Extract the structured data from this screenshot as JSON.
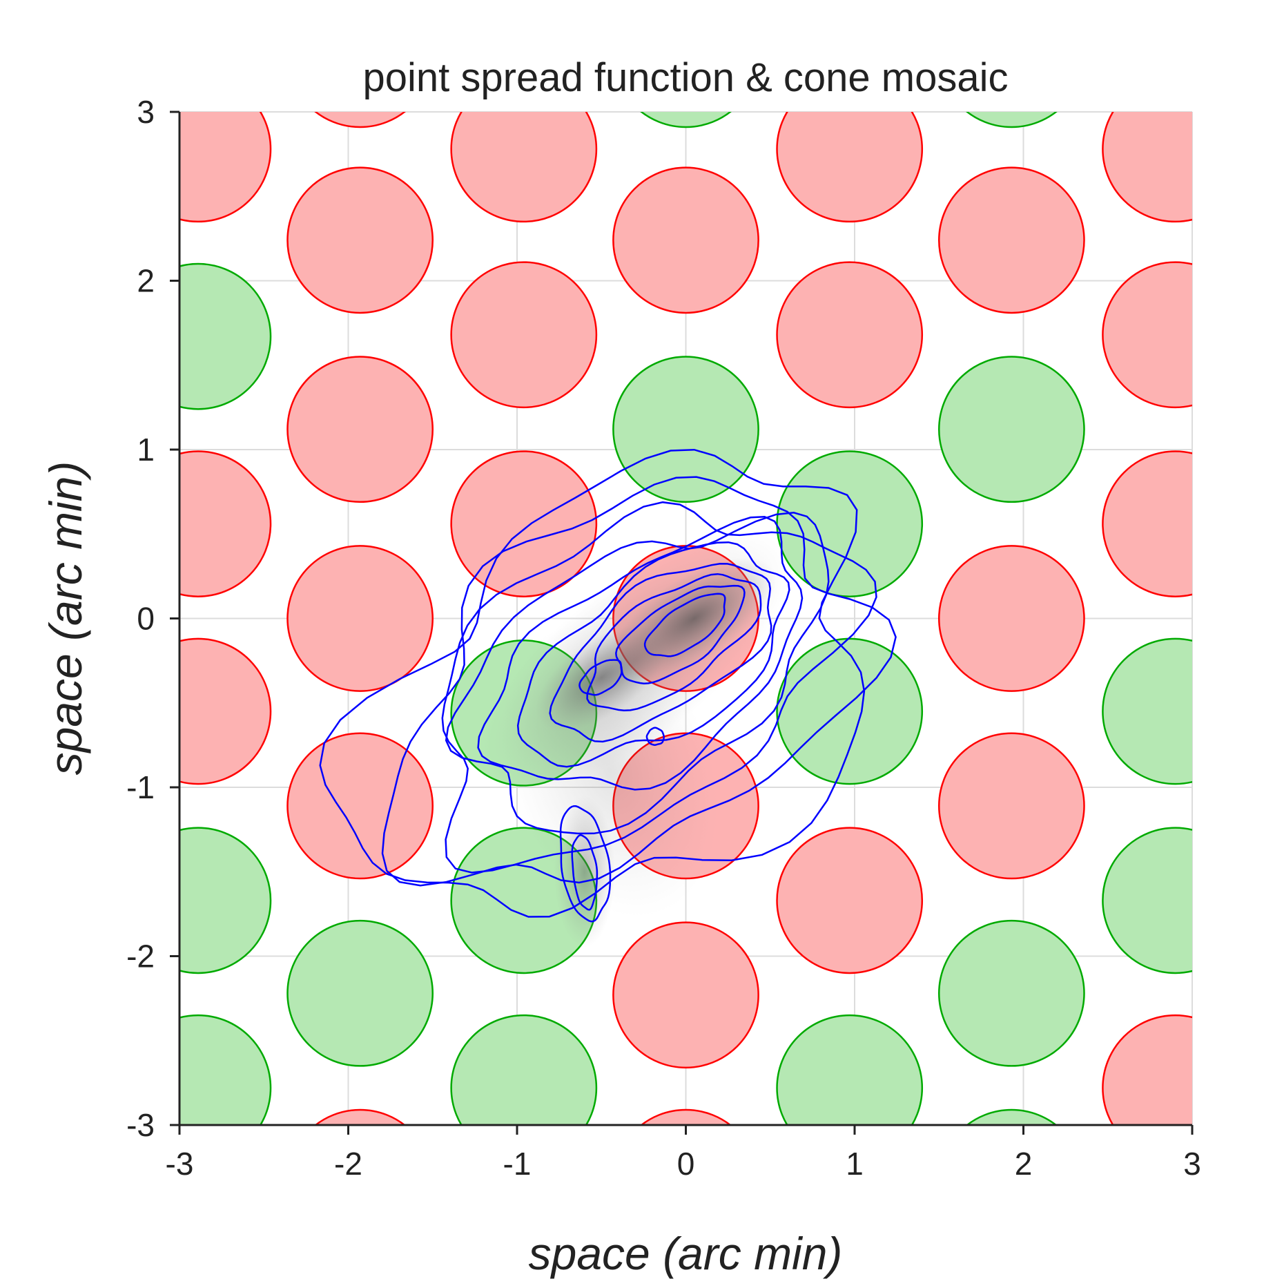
{
  "chart_data": {
    "type": "contour",
    "title": "point spread function & cone mosaic",
    "xlabel": "space (arc min)",
    "ylabel": "space (arc min)",
    "xlim": [
      -3,
      3
    ],
    "ylim": [
      -3,
      3
    ],
    "xticks": [
      -3,
      -2,
      -1,
      0,
      1,
      2,
      3
    ],
    "yticks": [
      -3,
      -2,
      -1,
      0,
      1,
      2,
      3
    ],
    "xtick_labels": [
      "-3",
      "-2",
      "-1",
      "0",
      "1",
      "2",
      "3"
    ],
    "ytick_labels": [
      "-3",
      "-2",
      "-1",
      "0",
      "1",
      "2",
      "3"
    ],
    "grid": true,
    "colors": {
      "L_cone_fill": "#fdb2b2",
      "L_cone_edge": "#ff0000",
      "M_cone_fill": "#b5e8b3",
      "M_cone_edge": "#00aa00",
      "contour": "#0000ff",
      "psf_shade": "#505050"
    },
    "cone_mosaic": {
      "cone_diameter": 0.86,
      "row_spacing": 0.555,
      "col_spacing": 0.963,
      "cones": [
        {
          "x": -2.89,
          "y": 2.78,
          "type": "L"
        },
        {
          "x": -0.96,
          "y": 2.78,
          "type": "L"
        },
        {
          "x": 0.97,
          "y": 2.78,
          "type": "L"
        },
        {
          "x": 2.9,
          "y": 2.78,
          "type": "L"
        },
        {
          "x": -1.93,
          "y": 3.34,
          "type": "L"
        },
        {
          "x": 0.0,
          "y": 3.34,
          "type": "M"
        },
        {
          "x": 1.93,
          "y": 3.34,
          "type": "M"
        },
        {
          "x": -1.93,
          "y": 2.24,
          "type": "L"
        },
        {
          "x": 0.0,
          "y": 2.24,
          "type": "L"
        },
        {
          "x": 1.93,
          "y": 2.24,
          "type": "L"
        },
        {
          "x": -2.89,
          "y": 1.67,
          "type": "M"
        },
        {
          "x": -0.96,
          "y": 1.68,
          "type": "L"
        },
        {
          "x": 0.97,
          "y": 1.68,
          "type": "L"
        },
        {
          "x": 2.9,
          "y": 1.68,
          "type": "L"
        },
        {
          "x": -1.93,
          "y": 1.12,
          "type": "L"
        },
        {
          "x": 0.0,
          "y": 1.12,
          "type": "M"
        },
        {
          "x": 1.93,
          "y": 1.12,
          "type": "M"
        },
        {
          "x": -2.89,
          "y": 0.56,
          "type": "L"
        },
        {
          "x": -0.96,
          "y": 0.56,
          "type": "L"
        },
        {
          "x": 0.97,
          "y": 0.56,
          "type": "M"
        },
        {
          "x": 2.9,
          "y": 0.56,
          "type": "L"
        },
        {
          "x": -1.93,
          "y": 0.0,
          "type": "L"
        },
        {
          "x": 0.0,
          "y": 0.0,
          "type": "L"
        },
        {
          "x": 1.93,
          "y": 0.0,
          "type": "L"
        },
        {
          "x": -2.89,
          "y": -0.55,
          "type": "L"
        },
        {
          "x": -0.96,
          "y": -0.56,
          "type": "M"
        },
        {
          "x": 0.97,
          "y": -0.55,
          "type": "M"
        },
        {
          "x": 2.9,
          "y": -0.55,
          "type": "M"
        },
        {
          "x": -1.93,
          "y": -1.11,
          "type": "L"
        },
        {
          "x": 0.0,
          "y": -1.11,
          "type": "L"
        },
        {
          "x": 1.93,
          "y": -1.11,
          "type": "L"
        },
        {
          "x": -2.89,
          "y": -1.67,
          "type": "M"
        },
        {
          "x": -0.96,
          "y": -1.67,
          "type": "M"
        },
        {
          "x": 0.97,
          "y": -1.67,
          "type": "L"
        },
        {
          "x": 2.9,
          "y": -1.67,
          "type": "M"
        },
        {
          "x": -1.93,
          "y": -2.22,
          "type": "M"
        },
        {
          "x": 0.0,
          "y": -2.23,
          "type": "L"
        },
        {
          "x": 1.93,
          "y": -2.22,
          "type": "M"
        },
        {
          "x": -2.89,
          "y": -2.78,
          "type": "M"
        },
        {
          "x": -0.96,
          "y": -2.78,
          "type": "M"
        },
        {
          "x": 0.97,
          "y": -2.78,
          "type": "M"
        },
        {
          "x": 2.9,
          "y": -2.78,
          "type": "L"
        },
        {
          "x": -1.93,
          "y": -3.34,
          "type": "L"
        },
        {
          "x": 0.0,
          "y": -3.34,
          "type": "L"
        },
        {
          "x": 1.93,
          "y": -3.34,
          "type": "M"
        }
      ]
    },
    "psf": {
      "peak": {
        "x": 0.05,
        "y": 0.0
      },
      "secondary_peaks": [
        {
          "x": -0.5,
          "y": -0.35
        },
        {
          "x": -0.6,
          "y": -1.5
        }
      ],
      "contour_levels": 10
    }
  }
}
